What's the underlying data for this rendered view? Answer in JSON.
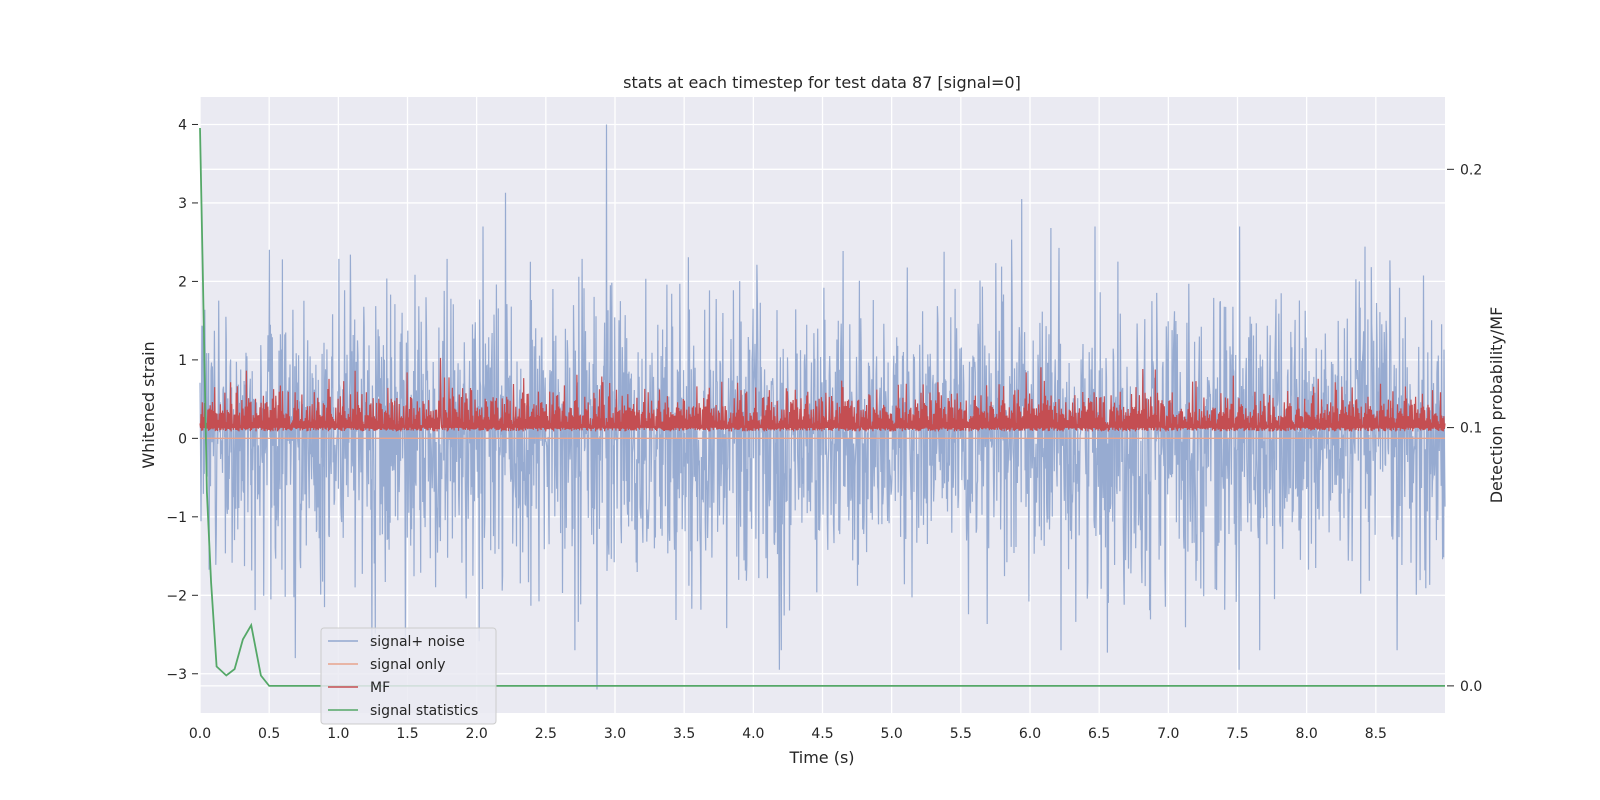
{
  "chart_data": {
    "type": "line",
    "title": "stats at each timestep for test data 87 [signal=0]",
    "xlabel": "Time (s)",
    "ylabel": "Whitened strain",
    "ylabel_right": "Detection probability/MF",
    "xlim": [
      0,
      9.0
    ],
    "ylim": [
      -3.5,
      4.35
    ],
    "ylim_right": [
      -0.0105,
      0.228
    ],
    "x_ticks": [
      "0.0",
      "0.5",
      "1.0",
      "1.5",
      "2.0",
      "2.5",
      "3.0",
      "3.5",
      "4.0",
      "4.5",
      "5.0",
      "5.5",
      "6.0",
      "6.5",
      "7.0",
      "7.5",
      "8.0",
      "8.5"
    ],
    "y_ticks": [
      "4",
      "3",
      "2",
      "1",
      "0",
      "−1",
      "−2",
      "−3"
    ],
    "y_tick_values": [
      4,
      3,
      2,
      1,
      0,
      -1,
      -2,
      -3
    ],
    "y_right_ticks": [
      "0.2",
      "0.1",
      "0.0"
    ],
    "y_right_tick_values": [
      0.2,
      0.1,
      0.0
    ],
    "grid": true,
    "legend_position": "lower-left",
    "series": [
      {
        "name": "signal+ noise",
        "color": "#92a8cf",
        "axis": "left",
        "description_values": {
          "duration_s": 9.0,
          "approx_std": 0.9,
          "peaks": [
            {
              "t": 2.94,
              "y": 4.0
            },
            {
              "t": 2.21,
              "y": 3.13
            },
            {
              "t": 5.94,
              "y": 3.05
            },
            {
              "t": 2.87,
              "y": -3.2
            },
            {
              "t": 0.69,
              "y": -2.8
            },
            {
              "t": 7.51,
              "y": -2.95
            },
            {
              "t": 4.19,
              "y": -2.95
            },
            {
              "t": 6.56,
              "y": -2.73
            }
          ]
        }
      },
      {
        "name": "signal only",
        "color": "#e8a38c",
        "axis": "left",
        "values_constant": 0
      },
      {
        "name": "MF",
        "color": "#c44e52",
        "axis": "right",
        "baseline": 0.1,
        "band_max": 0.128,
        "peak": {
          "t": 1.74,
          "y": 0.127
        }
      },
      {
        "name": "signal statistics",
        "color": "#55a868",
        "axis": "right",
        "x": [
          0.0,
          0.02,
          0.05,
          0.08,
          0.12,
          0.19,
          0.25,
          0.31,
          0.37,
          0.44,
          0.5,
          1.0,
          2.0,
          3.0,
          4.0,
          5.0,
          6.0,
          7.0,
          8.0,
          9.0
        ],
        "y": [
          0.216,
          0.16,
          0.075,
          0.04,
          0.0075,
          0.004,
          0.0065,
          0.018,
          0.0235,
          0.004,
          0.0,
          0.0,
          0.0,
          0.0,
          0.0,
          0.0,
          0.0,
          0.0,
          0.0,
          0.0
        ]
      }
    ]
  }
}
